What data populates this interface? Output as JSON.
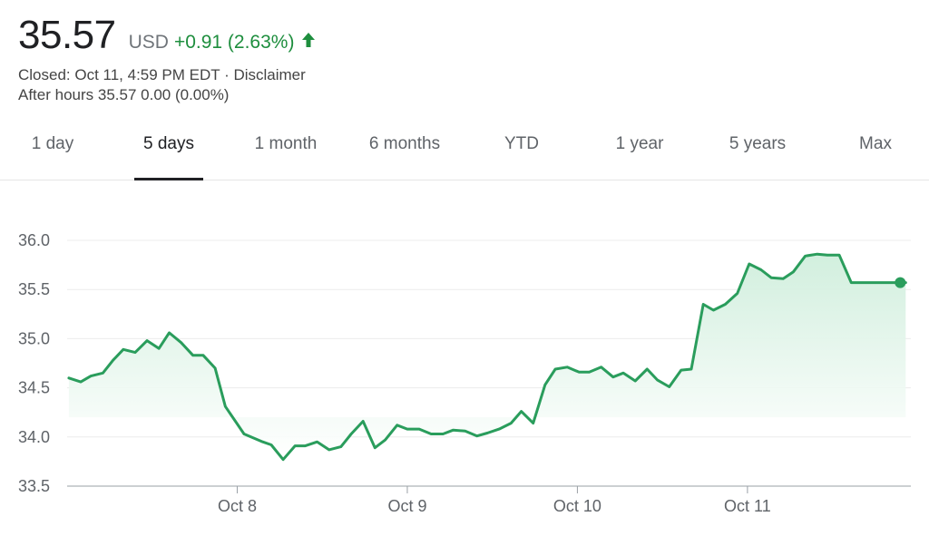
{
  "quote": {
    "price": "35.57",
    "currency": "USD",
    "change": "+0.91 (2.63%)",
    "closed_text": "Closed: Oct 11, 4:59 PM EDT · Disclaimer",
    "after_hours_text": "After hours 35.57 0.00 (0.00%)",
    "trend_icon": "arrow-up-icon"
  },
  "tabs": [
    {
      "label": "1 day"
    },
    {
      "label": "5 days"
    },
    {
      "label": "1 month"
    },
    {
      "label": "6 months"
    },
    {
      "label": "YTD"
    },
    {
      "label": "1 year"
    },
    {
      "label": "5 years"
    },
    {
      "label": "Max"
    }
  ],
  "selected_tab": "5 days",
  "colors": {
    "line": "#2a9d5c",
    "fill": "#e3f4e9",
    "positive": "#1e8e3e"
  },
  "chart_data": {
    "type": "area",
    "title": "",
    "xlabel": "",
    "ylabel": "",
    "ylim": [
      33.5,
      36.0
    ],
    "y_ticks": [
      {
        "value": 36.0,
        "label": "36.0"
      },
      {
        "value": 35.5,
        "label": "35.5"
      },
      {
        "value": 35.0,
        "label": "35.0"
      },
      {
        "value": 34.5,
        "label": "34.5"
      },
      {
        "value": 34.0,
        "label": "34.0"
      },
      {
        "value": 33.5,
        "label": "33.5"
      }
    ],
    "x_range": [
      7.0,
      11.95
    ],
    "x_ticks": [
      {
        "value": 8,
        "label": "Oct 8"
      },
      {
        "value": 9,
        "label": "Oct 9"
      },
      {
        "value": 10,
        "label": "Oct 10"
      },
      {
        "value": 11,
        "label": "Oct 11"
      }
    ],
    "grid": true,
    "series": [
      {
        "x": [
          7.01,
          7.08,
          7.14,
          7.21,
          7.27,
          7.33,
          7.4,
          7.47,
          7.54,
          7.6,
          7.67,
          7.74,
          7.8,
          7.87,
          7.93,
          8.04,
          8.15,
          8.2,
          8.27,
          8.34,
          8.4,
          8.47,
          8.54,
          8.61,
          8.67,
          8.74,
          8.81,
          8.87,
          8.94,
          9.0,
          9.07,
          9.14,
          9.21,
          9.27,
          9.34,
          9.41,
          9.47,
          9.54,
          9.61,
          9.67,
          9.74,
          9.81,
          9.87,
          9.94,
          10.01,
          10.07,
          10.14,
          10.21,
          10.27,
          10.34,
          10.41,
          10.47,
          10.54,
          10.61,
          10.67,
          10.74,
          10.8,
          10.87,
          10.94,
          11.01,
          11.08,
          11.14,
          11.21,
          11.27,
          11.34,
          11.41,
          11.47,
          11.54,
          11.61,
          11.67,
          11.74,
          11.81,
          11.87,
          11.93
        ],
        "values": [
          34.6,
          34.56,
          34.62,
          34.65,
          34.78,
          34.89,
          34.86,
          34.98,
          34.9,
          35.06,
          34.96,
          34.83,
          34.83,
          34.7,
          34.31,
          34.03,
          33.95,
          33.92,
          33.77,
          33.91,
          33.91,
          33.95,
          33.87,
          33.9,
          34.03,
          34.16,
          33.89,
          33.97,
          34.12,
          34.08,
          34.08,
          34.03,
          34.03,
          34.07,
          34.06,
          34.01,
          34.04,
          34.08,
          34.14,
          34.26,
          34.14,
          34.53,
          34.69,
          34.71,
          34.66,
          34.66,
          34.71,
          34.61,
          34.65,
          34.57,
          34.69,
          34.58,
          34.51,
          34.68,
          34.69,
          35.35,
          35.29,
          35.35,
          35.46,
          35.76,
          35.7,
          35.62,
          35.61,
          35.68,
          35.84,
          35.86,
          35.85,
          35.85,
          35.57,
          35.57,
          35.57,
          35.57,
          35.57,
          35.57
        ]
      }
    ]
  }
}
